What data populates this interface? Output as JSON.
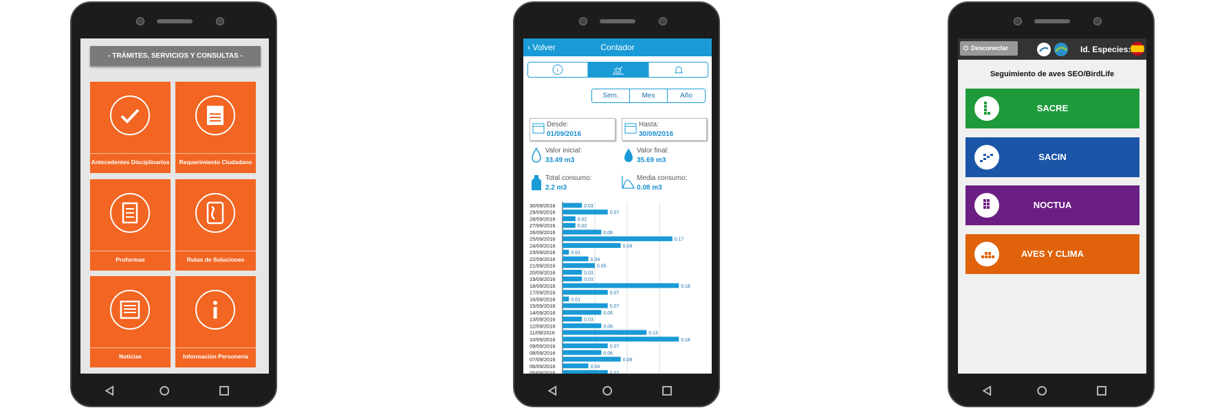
{
  "phone1": {
    "header": "- TRÁMITES, SERVICIOS Y CONSULTAS -",
    "tiles": [
      "Antecedentes Disciplinarios",
      "Requerimiento Ciudadano",
      "Proformas",
      "Rutas de Soluciones",
      "Noticias",
      "Información Personería"
    ]
  },
  "phone2": {
    "back": "Volver",
    "title": "Contador",
    "periods": [
      "Sem.",
      "Mes",
      "Año"
    ],
    "from": {
      "label": "Desde:",
      "value": "01/09/2016"
    },
    "to": {
      "label": "Hasta:",
      "value": "30/09/2016"
    },
    "stats": [
      {
        "label": "Valor inicial:",
        "value": "33.49 m3"
      },
      {
        "label": "Valor final:",
        "value": "35.69 m3"
      },
      {
        "label": "Total consumo:",
        "value": "2.2 m3"
      },
      {
        "label": "Media consumo:",
        "value": "0.08 m3"
      }
    ],
    "chart": {
      "type": "bar",
      "color": "#1a9ad6",
      "xlim": [
        0,
        0.2
      ],
      "categories": [
        "30/09/2016",
        "29/09/2016",
        "28/09/2016",
        "27/09/2016",
        "26/09/2016",
        "25/09/2016",
        "24/09/2016",
        "23/09/2016",
        "22/09/2016",
        "21/09/2016",
        "20/09/2016",
        "19/09/2016",
        "18/09/2016",
        "17/09/2016",
        "16/09/2016",
        "15/09/2016",
        "14/09/2016",
        "13/09/2016",
        "12/09/2016",
        "11/09/2016",
        "10/09/2016",
        "09/09/2016",
        "08/09/2016",
        "07/09/2016",
        "06/09/2016",
        "05/09/2016"
      ],
      "values": [
        0.03,
        0.07,
        0.02,
        0.02,
        0.06,
        0.17,
        0.09,
        0.01,
        0.04,
        0.05,
        0.03,
        0.03,
        0.18,
        0.07,
        0.01,
        0.07,
        0.06,
        0.03,
        0.06,
        0.13,
        0.18,
        0.07,
        0.06,
        0.09,
        0.04,
        0.07
      ]
    }
  },
  "phone3": {
    "logout": "Desconectar",
    "species": "Id. Especies:",
    "title": "Seguimiento de aves SEO/BirdLife",
    "buttons": [
      {
        "label": "SACRE",
        "color": "#1f9a3b"
      },
      {
        "label": "SACIN",
        "color": "#1b55a8"
      },
      {
        "label": "NOCTUA",
        "color": "#6b1f83"
      },
      {
        "label": "AVES Y CLIMA",
        "color": "#e0620b"
      }
    ]
  }
}
